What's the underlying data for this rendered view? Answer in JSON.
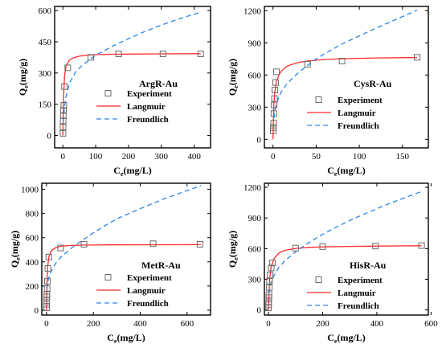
{
  "colors": {
    "experiment": "#6b6b6b",
    "langmuir": "#ff2a2a",
    "freundlich": "#2a86e8",
    "axis": "#000000"
  },
  "chart_data": [
    {
      "type": "scatter",
      "title": "ArgR-Au",
      "xlabel": "Ce(mg/L)",
      "ylabel": "Qe(mg/g)",
      "xlim": [
        -25,
        450
      ],
      "ylim": [
        -60,
        620
      ],
      "xticks": [
        0,
        100,
        200,
        300,
        400
      ],
      "yticks": [
        0,
        150,
        300,
        450,
        600
      ],
      "legend": [
        "Experiment",
        "Langmuir",
        "Freundlich"
      ],
      "series": [
        {
          "name": "Experiment",
          "kind": "points",
          "x": [
            0.3,
            0.6,
            1,
            1.5,
            2,
            3,
            5,
            15,
            85,
            170,
            305,
            420
          ],
          "y": [
            10,
            40,
            70,
            95,
            120,
            145,
            235,
            325,
            375,
            392,
            392,
            392
          ]
        },
        {
          "name": "Langmuir",
          "kind": "line",
          "x": [
            0,
            2,
            5,
            10,
            20,
            30,
            50,
            75,
            100,
            150,
            200,
            300,
            420
          ],
          "y": [
            0,
            175,
            285,
            335,
            362,
            372,
            381,
            386,
            388,
            390,
            391,
            392,
            393
          ]
        },
        {
          "name": "Freundlich",
          "kind": "line",
          "x": [
            1,
            5,
            10,
            20,
            40,
            60,
            80,
            100,
            150,
            200,
            250,
            300,
            350,
            420
          ],
          "y": [
            65,
            138,
            188,
            252,
            308,
            338,
            362,
            385,
            428,
            465,
            500,
            530,
            558,
            592
          ]
        }
      ]
    },
    {
      "type": "scatter",
      "title": "CysR-Au",
      "xlabel": "Ce(mg/L)",
      "ylabel": "Qe(mg/g)",
      "xlim": [
        -10,
        180
      ],
      "ylim": [
        -80,
        1240
      ],
      "xticks": [
        0,
        50,
        100,
        150
      ],
      "yticks": [
        0,
        300,
        600,
        900,
        1200
      ],
      "legend": [
        "Experiment",
        "Langmuir",
        "Freundlich"
      ],
      "series": [
        {
          "name": "Experiment",
          "kind": "points",
          "x": [
            0.2,
            0.4,
            0.7,
            1,
            1.3,
            1.7,
            2.2,
            3,
            4,
            40,
            80,
            167
          ],
          "y": [
            80,
            110,
            150,
            240,
            320,
            380,
            460,
            530,
            630,
            700,
            730,
            765
          ]
        },
        {
          "name": "Langmuir",
          "kind": "line",
          "x": [
            0,
            1,
            2,
            4,
            7,
            10,
            15,
            20,
            30,
            40,
            60,
            80,
            120,
            167
          ],
          "y": [
            0,
            330,
            440,
            540,
            605,
            640,
            675,
            695,
            718,
            730,
            745,
            752,
            759,
            763
          ]
        },
        {
          "name": "Freundlich",
          "kind": "line",
          "x": [
            1,
            2,
            4,
            7,
            10,
            15,
            20,
            30,
            40,
            50,
            60,
            80,
            100,
            120,
            140,
            167
          ],
          "y": [
            200,
            260,
            335,
            400,
            450,
            505,
            550,
            625,
            690,
            750,
            800,
            890,
            965,
            1040,
            1110,
            1205
          ]
        }
      ]
    },
    {
      "type": "scatter",
      "title": "MetR-Au",
      "xlabel": "Ce(mg/L)",
      "ylabel": "Qe(mg/g)",
      "xlim": [
        -20,
        700
      ],
      "ylim": [
        -40,
        1050
      ],
      "xticks": [
        0,
        200,
        400,
        600
      ],
      "yticks": [
        0,
        200,
        400,
        600,
        800,
        1000
      ],
      "legend": [
        "Experiment",
        "Langmuir",
        "Freundlich"
      ],
      "series": [
        {
          "name": "Experiment",
          "kind": "points",
          "x": [
            0.3,
            0.6,
            1,
            1.5,
            2,
            3,
            4,
            6,
            10,
            60,
            160,
            455,
            655
          ],
          "y": [
            20,
            50,
            80,
            110,
            130,
            180,
            240,
            345,
            440,
            515,
            545,
            550,
            545
          ]
        },
        {
          "name": "Langmuir",
          "kind": "line",
          "x": [
            0,
            2,
            5,
            10,
            20,
            40,
            60,
            100,
            150,
            250,
            400,
            660
          ],
          "y": [
            0,
            210,
            360,
            440,
            490,
            518,
            528,
            535,
            538,
            540,
            541,
            542
          ]
        },
        {
          "name": "Freundlich",
          "kind": "line",
          "x": [
            2,
            5,
            10,
            20,
            40,
            60,
            100,
            150,
            200,
            250,
            300,
            400,
            500,
            600,
            660
          ],
          "y": [
            175,
            222,
            268,
            323,
            390,
            435,
            505,
            575,
            640,
            700,
            755,
            840,
            920,
            990,
            1030
          ]
        }
      ]
    },
    {
      "type": "scatter",
      "title": "HisR-Au",
      "xlabel": "Ce(mg/L)",
      "ylabel": "Qe(mg/g)",
      "xlim": [
        -15,
        590
      ],
      "ylim": [
        -50,
        1240
      ],
      "xticks": [
        0,
        200,
        400,
        600
      ],
      "yticks": [
        0,
        300,
        600,
        900,
        1200
      ],
      "legend": [
        "Experiment",
        "Langmuir",
        "Freundlich"
      ],
      "series": [
        {
          "name": "Experiment",
          "kind": "points",
          "x": [
            0.3,
            0.6,
            1,
            1.5,
            2,
            3,
            4,
            6,
            10,
            15,
            100,
            200,
            395,
            565
          ],
          "y": [
            20,
            50,
            80,
            120,
            150,
            220,
            280,
            340,
            410,
            460,
            605,
            620,
            625,
            630
          ]
        },
        {
          "name": "Langmuir",
          "kind": "line",
          "x": [
            0,
            2,
            5,
            10,
            20,
            40,
            60,
            100,
            150,
            200,
            300,
            400,
            565
          ],
          "y": [
            0,
            170,
            310,
            420,
            500,
            560,
            583,
            602,
            612,
            617,
            622,
            625,
            628
          ]
        },
        {
          "name": "Freundlich",
          "kind": "line",
          "x": [
            2,
            5,
            10,
            20,
            40,
            60,
            100,
            150,
            200,
            250,
            300,
            350,
            400,
            450,
            500,
            565
          ],
          "y": [
            160,
            215,
            270,
            335,
            420,
            480,
            570,
            660,
            740,
            810,
            875,
            935,
            990,
            1045,
            1095,
            1160
          ]
        }
      ]
    }
  ]
}
